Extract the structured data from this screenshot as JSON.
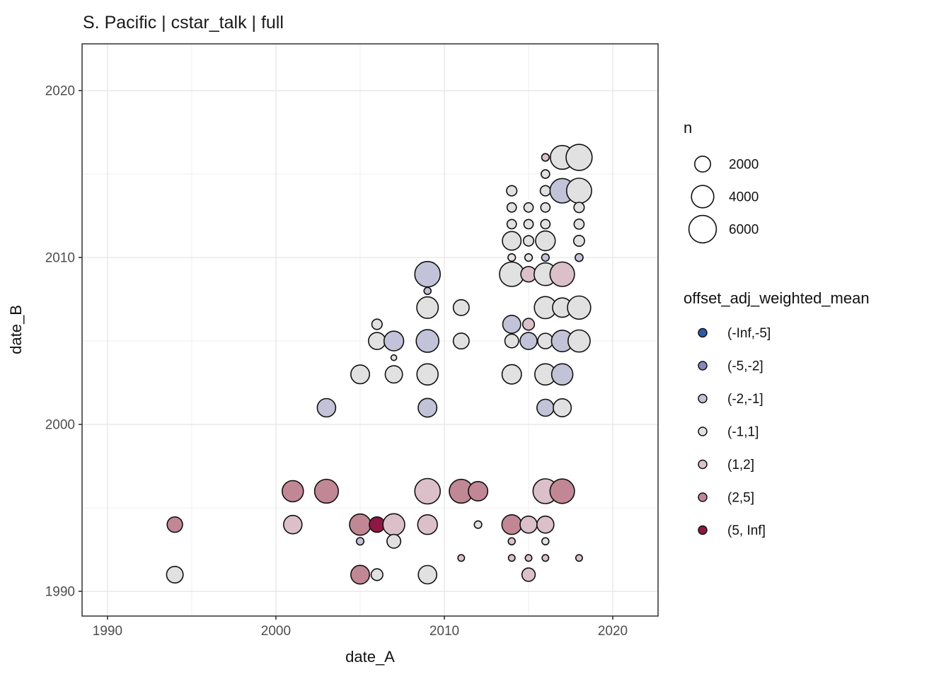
{
  "chart_data": {
    "type": "scatter",
    "title": "S. Pacific | cstar_talk | full",
    "xlabel": "date_A",
    "ylabel": "date_B",
    "x_domain": [
      1988.49,
      2022.69
    ],
    "y_domain": [
      1988.52,
      2022.8
    ],
    "x_ticks": [
      "1990",
      "2000",
      "2010",
      "2020"
    ],
    "x_tick_values": [
      1990,
      2000,
      2010,
      2020
    ],
    "y_ticks": [
      "1990",
      "2000",
      "2010",
      "2020"
    ],
    "y_tick_values": [
      1990,
      2000,
      2010,
      2020
    ],
    "x_minor_tick_values": [
      1995,
      2005,
      2015
    ],
    "y_minor_tick_values": [
      1995,
      2005,
      2015
    ],
    "grid": true,
    "legend_position": "right",
    "size_legend": {
      "title": "n",
      "labels": [
        "2000",
        "4000",
        "6000"
      ],
      "values": [
        2000,
        4000,
        6000
      ]
    },
    "color_legend": {
      "title": "offset_adj_weighted_mean",
      "categories": [
        "(-Inf,-5]",
        "(-5,-2]",
        "(-2,-1]",
        "(-1,1]",
        "(1,2]",
        "(2,5]",
        "(5, Inf]"
      ],
      "colors": [
        "#2b5ca8",
        "#8289be",
        "#c2c2d8",
        "#e2e1e1",
        "#dcc0c9",
        "#c28795",
        "#8e1843"
      ]
    },
    "size_scale_note": "point radius px = 0.25 * sqrt(n)",
    "points_format": [
      "date_A",
      "date_B",
      "n",
      "offset_bin"
    ],
    "points": [
      [
        1994,
        1991,
        2200,
        "(-1,1]"
      ],
      [
        1994,
        1994,
        1900,
        "(2,5]"
      ],
      [
        2001,
        1994,
        2700,
        "(1,2]"
      ],
      [
        2001,
        1996,
        3600,
        "(2,5]"
      ],
      [
        2003,
        1996,
        4500,
        "(2,5]"
      ],
      [
        2003,
        2001,
        2700,
        "(-2,-1]"
      ],
      [
        2005,
        1991,
        2800,
        "(2,5]"
      ],
      [
        2005,
        1993,
        450,
        "(-2,-1]"
      ],
      [
        2005,
        1994,
        3600,
        "(2,5]"
      ],
      [
        2005,
        2003,
        2800,
        "(-1,1]"
      ],
      [
        2006,
        1991,
        1100,
        "(-1,1]"
      ],
      [
        2006,
        1994,
        1900,
        "(5, Inf]"
      ],
      [
        2006,
        2005,
        2300,
        "(-1,1]"
      ],
      [
        2006,
        2006,
        850,
        "(-1,1]"
      ],
      [
        2007,
        1993,
        1500,
        "(-1,1]"
      ],
      [
        2007,
        1994,
        3800,
        "(1,2]"
      ],
      [
        2007,
        2003,
        2400,
        "(-1,1]"
      ],
      [
        2007,
        2004,
        250,
        "(-1,1]"
      ],
      [
        2007,
        2005,
        3100,
        "(-2,-1]"
      ],
      [
        2009,
        1991,
        2700,
        "(-1,1]"
      ],
      [
        2009,
        1994,
        3100,
        "(1,2]"
      ],
      [
        2009,
        1996,
        5200,
        "(1,2]"
      ],
      [
        2009,
        2001,
        2800,
        "(-2,-1]"
      ],
      [
        2009,
        2003,
        3600,
        "(-1,1]"
      ],
      [
        2009,
        2005,
        4100,
        "(-2,-1]"
      ],
      [
        2009,
        2007,
        3700,
        "(-1,1]"
      ],
      [
        2009,
        2008,
        400,
        "(-2,-1]"
      ],
      [
        2009,
        2009,
        5200,
        "(-2,-1]"
      ],
      [
        2011,
        1992,
        350,
        "(1,2]"
      ],
      [
        2011,
        1996,
        4500,
        "(2,5]"
      ],
      [
        2011,
        2005,
        2000,
        "(-1,1]"
      ],
      [
        2011,
        2007,
        2000,
        "(-1,1]"
      ],
      [
        2012,
        1994,
        450,
        "(-1,1]"
      ],
      [
        2012,
        1996,
        3000,
        "(2,5]"
      ],
      [
        2014,
        1992,
        350,
        "(1,2]"
      ],
      [
        2014,
        1993,
        400,
        "(1,2]"
      ],
      [
        2014,
        1994,
        3100,
        "(2,5]"
      ],
      [
        2014,
        2003,
        3000,
        "(-1,1]"
      ],
      [
        2014,
        2005,
        1500,
        "(-1,1]"
      ],
      [
        2014,
        2006,
        2600,
        "(-2,-1]"
      ],
      [
        2014,
        2009,
        4800,
        "(-1,1]"
      ],
      [
        2014,
        2010,
        450,
        "(-1,1]"
      ],
      [
        2014,
        2011,
        2800,
        "(-1,1]"
      ],
      [
        2014,
        2012,
        700,
        "(-1,1]"
      ],
      [
        2014,
        2013,
        700,
        "(-1,1]"
      ],
      [
        2014,
        2014,
        850,
        "(-1,1]"
      ],
      [
        2015,
        1991,
        1400,
        "(1,2]"
      ],
      [
        2015,
        1992,
        350,
        "(1,2]"
      ],
      [
        2015,
        1994,
        2300,
        "(1,2]"
      ],
      [
        2015,
        2005,
        2300,
        "(-2,-1]"
      ],
      [
        2015,
        2006,
        1100,
        "(1,2]"
      ],
      [
        2015,
        2009,
        1900,
        "(1,2]"
      ],
      [
        2015,
        2010,
        450,
        "(-1,1]"
      ],
      [
        2015,
        2011,
        850,
        "(-1,1]"
      ],
      [
        2015,
        2012,
        700,
        "(-1,1]"
      ],
      [
        2015,
        2013,
        700,
        "(-1,1]"
      ],
      [
        2016,
        1992,
        350,
        "(1,2]"
      ],
      [
        2016,
        1993,
        400,
        "(-1,1]"
      ],
      [
        2016,
        1994,
        2300,
        "(1,2]"
      ],
      [
        2016,
        1996,
        4900,
        "(1,2]"
      ],
      [
        2016,
        2001,
        2300,
        "(-2,-1]"
      ],
      [
        2016,
        2003,
        3600,
        "(-1,1]"
      ],
      [
        2016,
        2005,
        1900,
        "(-1,1]"
      ],
      [
        2016,
        2007,
        3900,
        "(-1,1]"
      ],
      [
        2016,
        2009,
        4100,
        "(-1,1]"
      ],
      [
        2016,
        2010,
        450,
        "(-2,-1]"
      ],
      [
        2016,
        2011,
        3100,
        "(-1,1]"
      ],
      [
        2016,
        2012,
        700,
        "(-1,1]"
      ],
      [
        2016,
        2013,
        700,
        "(-1,1]"
      ],
      [
        2016,
        2014,
        850,
        "(-1,1]"
      ],
      [
        2016,
        2015,
        575,
        "(-1,1]"
      ],
      [
        2016,
        2016,
        450,
        "(1,2]"
      ],
      [
        2017,
        1996,
        4800,
        "(2,5]"
      ],
      [
        2017,
        2001,
        2600,
        "(-1,1]"
      ],
      [
        2017,
        2003,
        3600,
        "(-2,-1]"
      ],
      [
        2017,
        2005,
        3700,
        "(-2,-1]"
      ],
      [
        2017,
        2007,
        3000,
        "(-1,1]"
      ],
      [
        2017,
        2009,
        4800,
        "(1,2]"
      ],
      [
        2017,
        2014,
        4800,
        "(-2,-1]"
      ],
      [
        2017,
        2016,
        4500,
        "(-1,1]"
      ],
      [
        2018,
        1992,
        350,
        "(1,2]"
      ],
      [
        2018,
        2005,
        3900,
        "(-1,1]"
      ],
      [
        2018,
        2007,
        4300,
        "(-1,1]"
      ],
      [
        2018,
        2010,
        500,
        "(-2,-1]"
      ],
      [
        2018,
        2011,
        950,
        "(-1,1]"
      ],
      [
        2018,
        2012,
        800,
        "(-1,1]"
      ],
      [
        2018,
        2013,
        850,
        "(-1,1]"
      ],
      [
        2018,
        2014,
        5000,
        "(-1,1]"
      ],
      [
        2018,
        2016,
        5400,
        "(-1,1]"
      ]
    ],
    "style": {
      "panel_border_color": "#222222",
      "grid_major_color": "#e6e6e6",
      "grid_minor_color": "#f0f0f0",
      "point_stroke_color": "#111111",
      "tick_color": "#333333",
      "background": "#ffffff"
    }
  }
}
